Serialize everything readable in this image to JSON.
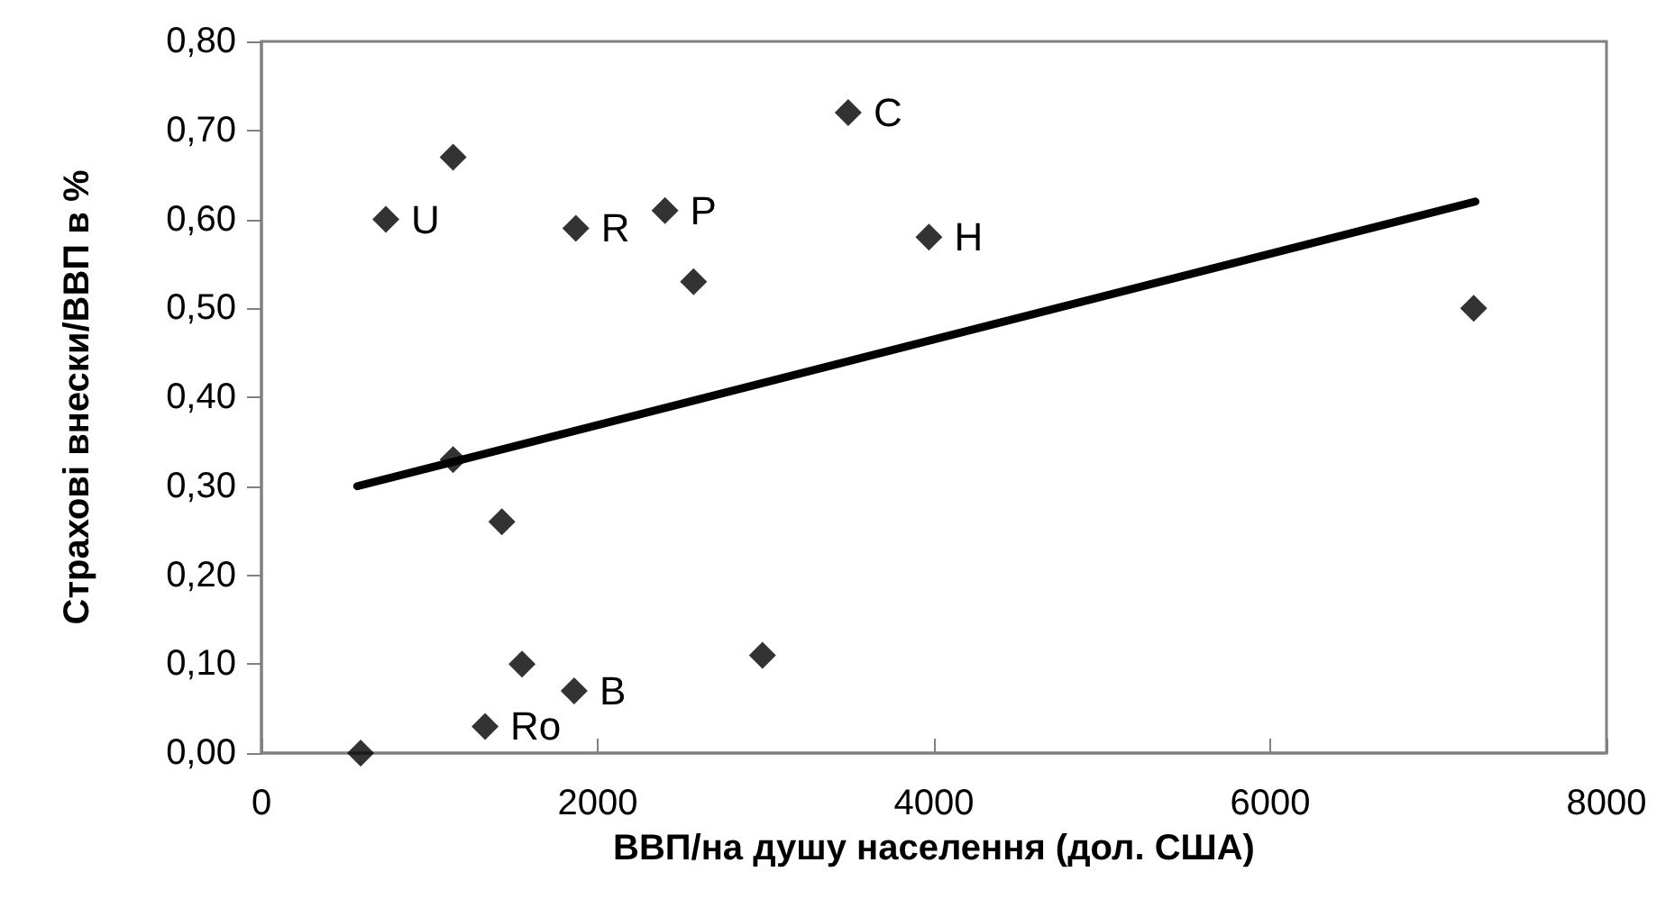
{
  "chart_data": {
    "type": "scatter",
    "xlabel": "ВВП/на душу населення (дол. США)",
    "ylabel": "Страхові внески/ВВП в %",
    "xlim": [
      0,
      8000
    ],
    "xticks": [
      0,
      2000,
      4000,
      6000,
      8000
    ],
    "ylim": [
      0,
      0.8
    ],
    "yticks": [
      {
        "value": 0,
        "label": "0,00"
      },
      {
        "value": 0.1,
        "label": "0,10"
      },
      {
        "value": 0.2,
        "label": "0,20"
      },
      {
        "value": 0.3,
        "label": "0,30"
      },
      {
        "value": 0.4,
        "label": "0,40"
      },
      {
        "value": 0.5,
        "label": "0,50"
      },
      {
        "value": 0.6,
        "label": "0,60"
      },
      {
        "value": 0.7,
        "label": "0,70"
      },
      {
        "value": 0.8,
        "label": "0,80"
      }
    ],
    "grid": false,
    "marker": "diamond",
    "series": [
      {
        "color": "#000000",
        "x": [
          590,
          740,
          1140,
          1140,
          1430,
          1550,
          1330,
          1860,
          1870,
          2400,
          2570,
          2980,
          3490,
          3970,
          7210
        ],
        "values": [
          0,
          0.6,
          0.67,
          0.33,
          0.26,
          0.1,
          0.03,
          0.07,
          0.59,
          0.61,
          0.53,
          0.11,
          0.72,
          0.58,
          0.5
        ]
      },
      {
        "type": "line",
        "color": "#000000",
        "marker": "none",
        "line_style": "solid",
        "x": [
          570,
          7220
        ],
        "values": [
          0.3,
          0.62
        ]
      }
    ],
    "annotations": [
      {
        "text": "U",
        "x": 740,
        "y": 0.6
      },
      {
        "text": "Ro",
        "x": 1330,
        "y": 0.03
      },
      {
        "text": "B",
        "x": 1860,
        "y": 0.07
      },
      {
        "text": "R",
        "x": 1870,
        "y": 0.59
      },
      {
        "text": "P",
        "x": 2400,
        "y": 0.61
      },
      {
        "text": "C",
        "x": 3490,
        "y": 0.72
      },
      {
        "text": "H",
        "x": 3970,
        "y": 0.58
      }
    ]
  }
}
